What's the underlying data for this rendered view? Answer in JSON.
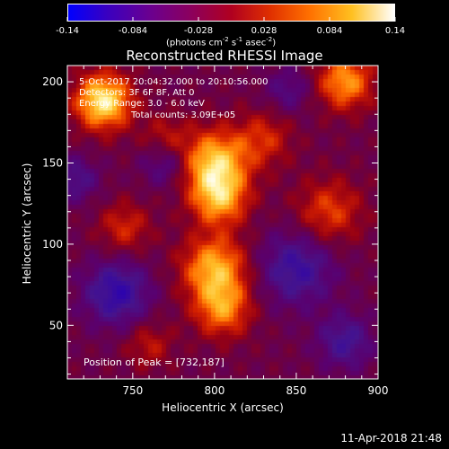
{
  "colorbar": {
    "ticks": [
      "-0.14",
      "-0.084",
      "-0.028",
      "0.028",
      "0.084",
      "0.14"
    ],
    "units_prefix": "(photons cm",
    "units_exp1": "-2",
    "units_mid": " s",
    "units_exp2": "-1",
    "units_mid2": " asec",
    "units_exp3": "-2",
    "units_suffix": ")"
  },
  "title": "Reconstructed RHESSI Image",
  "annotations": {
    "time": "5-Oct-2017 20:04:32.000 to 20:10:56.000",
    "detectors": "Detectors: 3F 6F 8F, Att 0",
    "energy": "Energy Range: 3.0 - 6.0 keV",
    "counts": "Total counts: 3.09E+05",
    "peak": "Position of Peak = [732,187]"
  },
  "xlabel": "Heliocentric X (arcsec)",
  "ylabel": "Heliocentric Y (arcsec)",
  "footer": "11-Apr-2018 21:48",
  "chart_data": {
    "type": "heatmap",
    "title": "Reconstructed RHESSI Image",
    "xlabel": "Heliocentric X (arcsec)",
    "ylabel": "Heliocentric Y (arcsec)",
    "xlim": [
      710,
      900
    ],
    "ylim": [
      17,
      210
    ],
    "xticks": [
      750,
      800,
      850,
      900
    ],
    "yticks": [
      50,
      100,
      150,
      200
    ],
    "colorscale": {
      "min": -0.14,
      "max": 0.14,
      "ticks": [
        -0.14,
        -0.084,
        -0.028,
        0.028,
        0.084,
        0.14
      ]
    },
    "peak": [
      732,
      187
    ],
    "sources": [
      {
        "x": 732,
        "y": 188,
        "value": 0.13,
        "sigma": 12
      },
      {
        "x": 800,
        "y": 150,
        "value": 0.11,
        "sigma": 14
      },
      {
        "x": 803,
        "y": 128,
        "value": 0.09,
        "sigma": 12
      },
      {
        "x": 800,
        "y": 85,
        "value": 0.1,
        "sigma": 14
      },
      {
        "x": 805,
        "y": 60,
        "value": 0.08,
        "sigma": 12
      },
      {
        "x": 880,
        "y": 200,
        "value": 0.09,
        "sigma": 12
      },
      {
        "x": 870,
        "y": 120,
        "value": 0.06,
        "sigma": 14
      },
      {
        "x": 745,
        "y": 110,
        "value": 0.05,
        "sigma": 11
      },
      {
        "x": 760,
        "y": 38,
        "value": 0.04,
        "sigma": 10
      },
      {
        "x": 830,
        "y": 165,
        "value": 0.05,
        "sigma": 12
      },
      {
        "x": 770,
        "y": 165,
        "value": 0.04,
        "sigma": 10
      }
    ],
    "minima": [
      {
        "x": 740,
        "y": 70,
        "value": -0.08,
        "sigma": 14
      },
      {
        "x": 850,
        "y": 85,
        "value": -0.07,
        "sigma": 16
      },
      {
        "x": 770,
        "y": 150,
        "value": -0.05,
        "sigma": 10
      },
      {
        "x": 880,
        "y": 40,
        "value": -0.06,
        "sigma": 12
      },
      {
        "x": 715,
        "y": 140,
        "value": -0.05,
        "sigma": 10
      },
      {
        "x": 845,
        "y": 195,
        "value": -0.04,
        "sigma": 10
      }
    ]
  }
}
